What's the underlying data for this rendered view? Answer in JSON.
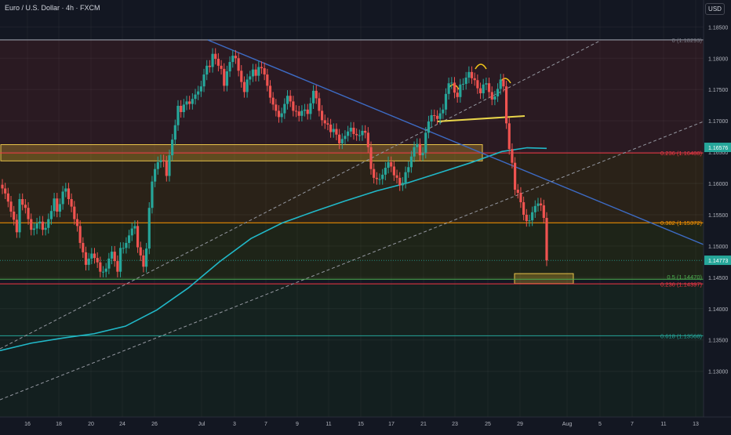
{
  "header": {
    "title": "Euro / U.S. Dollar · 4h · FXCM",
    "currency_button": "USD"
  },
  "chart_data": {
    "type": "candlestick",
    "title": "Euro / U.S. Dollar · 4h · FXCM",
    "y_ticks": [
      "1.18500",
      "1.18000",
      "1.17500",
      "1.17000",
      "1.16500",
      "1.16000",
      "1.15500",
      "1.15000",
      "1.14500",
      "1.14000",
      "1.13500",
      "1.13000"
    ],
    "y_tick_values": [
      1.185,
      1.18,
      1.175,
      1.17,
      1.165,
      1.16,
      1.155,
      1.15,
      1.145,
      1.14,
      1.135,
      1.13
    ],
    "x_ticks": [
      "16",
      "18",
      "20",
      "24",
      "26",
      "Jul",
      "3",
      "7",
      "9",
      "11",
      "15",
      "17",
      "21",
      "23",
      "25",
      "29",
      "Aug",
      "5",
      "7",
      "11",
      "13"
    ],
    "ylim": [
      1.1227,
      1.1893
    ],
    "grid": true,
    "fib_levels": [
      {
        "label": "0 (1.18293)",
        "value": 1.18293,
        "color": "#787b86"
      },
      {
        "label": "0.236 (1.16488)",
        "value": 1.16488,
        "color": "#f23645"
      },
      {
        "label": "0.382 (1.15372)",
        "value": 1.15372,
        "color": "#ff9800"
      },
      {
        "label": "0.5 (1.14470)",
        "value": 1.1447,
        "color": "#4caf50"
      },
      {
        "label": "0.236 (1.14397)",
        "value": 1.14397,
        "color": "#f23645"
      },
      {
        "label": "0.618 (1.13568)",
        "value": 1.13568,
        "color": "#26a69a"
      }
    ],
    "price_tags": [
      {
        "label": "1.16576",
        "value": 1.16576,
        "color": "#26a69a"
      },
      {
        "label": "1.14773",
        "value": 1.14773,
        "color": "#26a69a"
      }
    ],
    "candle_close": [
      1.1592,
      1.1584,
      1.1571,
      1.1555,
      1.1542,
      1.1522,
      1.1575,
      1.1566,
      1.1561,
      1.1543,
      1.1526,
      1.1528,
      1.1536,
      1.1539,
      1.1526,
      1.1529,
      1.1543,
      1.1556,
      1.1576,
      1.1555,
      1.1567,
      1.1587,
      1.1592,
      1.1575,
      1.1563,
      1.1543,
      1.1532,
      1.1505,
      1.149,
      1.147,
      1.148,
      1.1488,
      1.1481,
      1.1474,
      1.1459,
      1.1459,
      1.1464,
      1.148,
      1.1491,
      1.1476,
      1.1459,
      1.1497,
      1.1497,
      1.1505,
      1.1517,
      1.1528,
      1.1532,
      1.1498,
      1.1485,
      1.1467,
      1.1496,
      1.1561,
      1.1603,
      1.1623,
      1.1634,
      1.1637,
      1.1635,
      1.1612,
      1.1645,
      1.167,
      1.1693,
      1.1724,
      1.1714,
      1.1726,
      1.1731,
      1.1727,
      1.1735,
      1.1742,
      1.1747,
      1.1755,
      1.1774,
      1.1788,
      1.1786,
      1.1807,
      1.1799,
      1.1788,
      1.1783,
      1.1756,
      1.1779,
      1.1794,
      1.1804,
      1.18,
      1.178,
      1.1762,
      1.1746,
      1.1766,
      1.1771,
      1.1782,
      1.1772,
      1.1786,
      1.1784,
      1.1774,
      1.1756,
      1.1737,
      1.1726,
      1.1716,
      1.1706,
      1.1712,
      1.1727,
      1.174,
      1.1731,
      1.1716,
      1.1715,
      1.1708,
      1.1716,
      1.1718,
      1.1711,
      1.1728,
      1.1748,
      1.1736,
      1.1716,
      1.1701,
      1.1696,
      1.1694,
      1.1682,
      1.1687,
      1.1678,
      1.1664,
      1.1671,
      1.1676,
      1.1683,
      1.1689,
      1.1679,
      1.1677,
      1.1677,
      1.1684,
      1.1681,
      1.1658,
      1.1623,
      1.1609,
      1.1607,
      1.1607,
      1.1614,
      1.1625,
      1.1634,
      1.1627,
      1.1613,
      1.1609,
      1.1597,
      1.1601,
      1.1618,
      1.1626,
      1.1643,
      1.1658,
      1.1663,
      1.1645,
      1.1649,
      1.1681,
      1.1699,
      1.1709,
      1.1708,
      1.1703,
      1.1712,
      1.1718,
      1.1743,
      1.176,
      1.1761,
      1.1745,
      1.1738,
      1.1758,
      1.1759,
      1.1769,
      1.1778,
      1.1768,
      1.1765,
      1.1752,
      1.1744,
      1.1758,
      1.176,
      1.1746,
      1.1734,
      1.1739,
      1.1751,
      1.1766,
      1.1755,
      1.1696,
      1.1655,
      1.1633,
      1.159,
      1.1585,
      1.157,
      1.155,
      1.154,
      1.1541,
      1.1554,
      1.1564,
      1.1568,
      1.1565,
      1.1545,
      1.1477
    ]
  }
}
